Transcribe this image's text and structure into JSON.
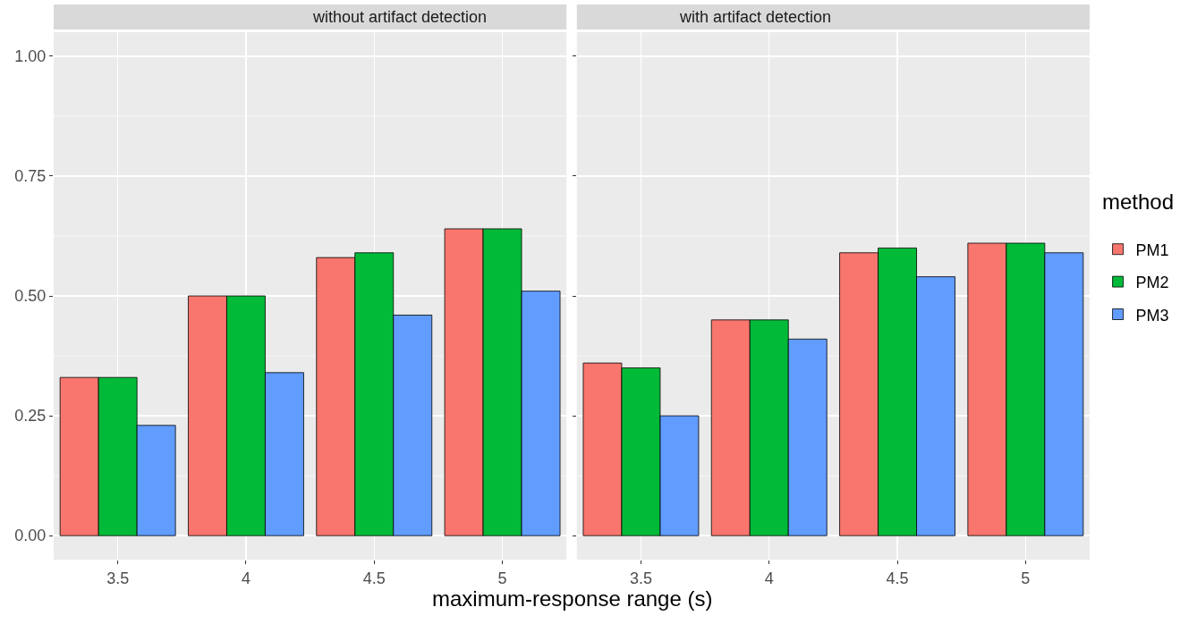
{
  "chart_data": [
    {
      "type": "bar",
      "title": "without artifact detection",
      "xlabel": "maximum-response range (s)",
      "legend_title": "method",
      "legend": "right",
      "grid": true,
      "categories": [
        "3.5",
        "4",
        "4.5",
        "5"
      ],
      "series": [
        {
          "name": "PM1",
          "color": "#f8766d",
          "values": [
            0.33,
            0.5,
            0.58,
            0.64
          ]
        },
        {
          "name": "PM2",
          "color": "#00ba38",
          "values": [
            0.33,
            0.5,
            0.59,
            0.64
          ]
        },
        {
          "name": "PM3",
          "color": "#619cff",
          "values": [
            0.23,
            0.34,
            0.46,
            0.51
          ]
        }
      ],
      "ylim": [
        -0.05,
        1.05
      ],
      "yticks": [
        {
          "value": 0,
          "label": "0.00"
        },
        {
          "value": 0.25,
          "label": "0.25"
        },
        {
          "value": 0.5,
          "label": "0.50"
        },
        {
          "value": 0.75,
          "label": "0.75"
        },
        {
          "value": 1,
          "label": "1.00"
        }
      ]
    },
    {
      "type": "bar",
      "title": "with artifact detection",
      "grid": true,
      "tick_labels": "x",
      "categories": [
        "3.5",
        "4",
        "4.5",
        "5"
      ],
      "series": [
        {
          "color": "#f8766d",
          "values": [
            0.36,
            0.45,
            0.59,
            0.61
          ]
        },
        {
          "color": "#00ba38",
          "values": [
            0.35,
            0.45,
            0.6,
            0.61
          ]
        },
        {
          "color": "#619cff",
          "values": [
            0.25,
            0.41,
            0.54,
            0.59
          ]
        }
      ],
      "ylim": [
        -0.05,
        1.05
      ],
      "yticks": [
        0,
        0.25,
        0.5,
        0.75,
        1
      ]
    }
  ]
}
